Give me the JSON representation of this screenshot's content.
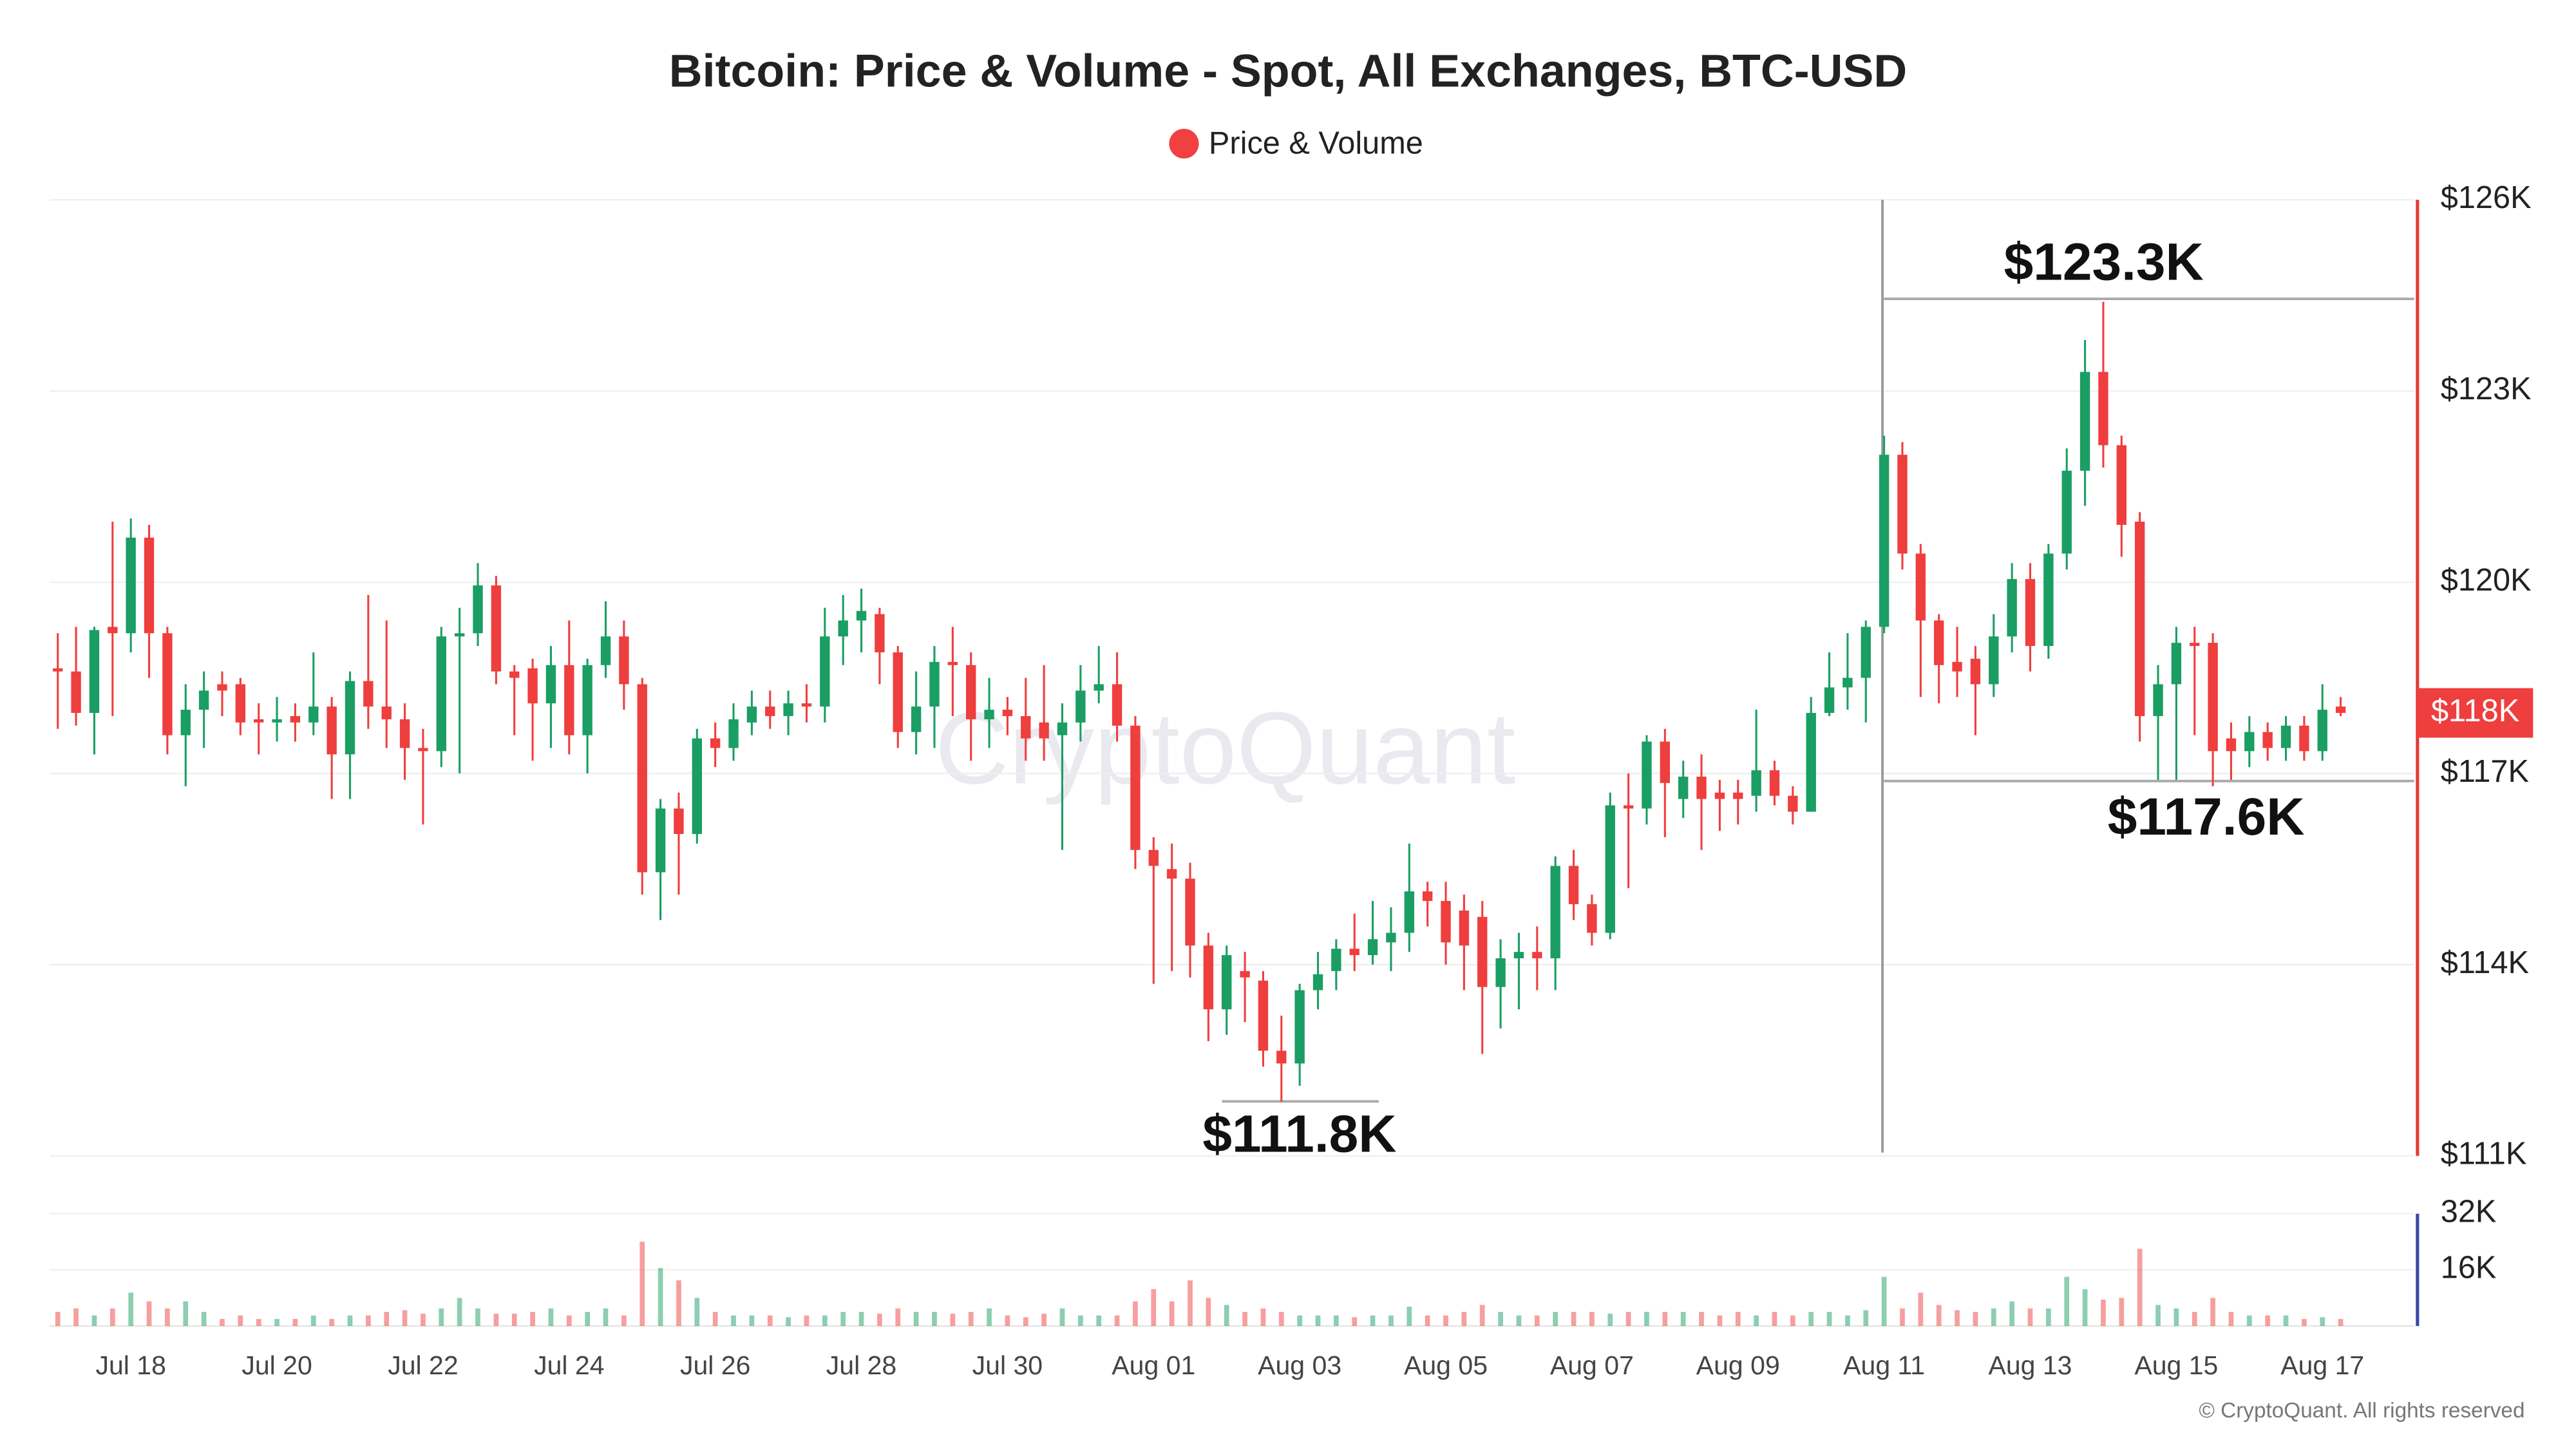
{
  "chart_data": {
    "type": "candlestick",
    "title": "Bitcoin: Price & Volume - Spot, All Exchanges, BTC-USD",
    "legend": {
      "label": "Price & Volume",
      "color": "#f23f3f"
    },
    "up_color": "#1a9e63",
    "down_color": "#ef3e3e",
    "grid": true,
    "watermark": "CryptoQuant",
    "credit": "© CryptoQuant. All rights reserved",
    "last_price_label": "$118K",
    "annotations": [
      "$123.3K",
      "$117.6K",
      "$111.8K"
    ],
    "categories": [
      null,
      null,
      null,
      null,
      "Jul 18",
      null,
      null,
      null,
      null,
      null,
      null,
      null,
      "Jul 20",
      null,
      null,
      null,
      null,
      null,
      null,
      null,
      "Jul 22",
      null,
      null,
      null,
      null,
      null,
      null,
      null,
      "Jul 24",
      null,
      null,
      null,
      null,
      null,
      null,
      null,
      "Jul 26",
      null,
      null,
      null,
      null,
      null,
      null,
      null,
      "Jul 28",
      null,
      null,
      null,
      null,
      null,
      null,
      null,
      "Jul 30",
      null,
      null,
      null,
      null,
      null,
      null,
      null,
      "Aug 01",
      null,
      null,
      null,
      null,
      null,
      null,
      null,
      "Aug 03",
      null,
      null,
      null,
      null,
      null,
      null,
      null,
      "Aug 05",
      null,
      null,
      null,
      null,
      null,
      null,
      null,
      "Aug 07",
      null,
      null,
      null,
      null,
      null,
      null,
      null,
      "Aug 09",
      null,
      null,
      null,
      null,
      null,
      null,
      null,
      "Aug 11",
      null,
      null,
      null,
      null,
      null,
      null,
      null,
      "Aug 13",
      null,
      null,
      null,
      null,
      null,
      null,
      null,
      "Aug 15",
      null,
      null,
      null,
      null,
      null,
      null,
      null,
      "Aug 17",
      null
    ],
    "open": [
      118.65,
      118.6,
      117.95,
      119.3,
      119.2,
      120.7,
      119.2,
      117.6,
      118.0,
      118.4,
      118.4,
      117.85,
      117.8,
      117.9,
      117.8,
      118.05,
      117.3,
      118.45,
      118.05,
      117.85,
      117.4,
      117.35,
      119.15,
      119.2,
      119.95,
      118.6,
      118.65,
      118.1,
      118.7,
      117.6,
      118.7,
      119.15,
      118.4,
      115.45,
      116.45,
      116.05,
      117.55,
      117.4,
      117.8,
      118.05,
      117.9,
      118.1,
      118.05,
      119.15,
      119.4,
      119.5,
      118.9,
      117.65,
      118.05,
      118.75,
      118.7,
      117.85,
      118.0,
      117.9,
      117.8,
      117.6,
      117.8,
      118.3,
      118.4,
      117.75,
      115.8,
      115.5,
      115.35,
      114.3,
      113.3,
      113.9,
      113.75,
      112.65,
      112.45,
      113.6,
      113.9,
      114.25,
      114.15,
      114.35,
      114.5,
      115.15,
      115.0,
      114.85,
      114.75,
      113.65,
      114.1,
      114.2,
      114.1,
      115.55,
      114.95,
      114.5,
      116.5,
      116.45,
      117.5,
      116.6,
      116.95,
      116.7,
      116.7,
      116.65,
      117.05,
      116.65,
      116.4,
      117.95,
      118.35,
      118.5,
      119.3,
      122.0,
      120.45,
      119.4,
      118.75,
      118.8,
      118.4,
      119.15,
      120.05,
      119.0,
      120.45,
      121.75,
      123.3,
      122.15,
      120.95,
      117.9,
      118.4,
      119.05,
      119.05,
      117.55,
      117.35,
      117.65,
      117.4,
      117.75,
      117.35,
      118.05
    ],
    "high": [
      119.2,
      119.3,
      119.3,
      120.95,
      121.0,
      120.9,
      119.3,
      118.4,
      118.6,
      118.6,
      118.5,
      118.1,
      118.2,
      118.1,
      118.9,
      118.2,
      118.6,
      119.8,
      119.4,
      118.1,
      117.7,
      119.3,
      119.6,
      120.3,
      120.1,
      118.7,
      118.8,
      119.0,
      119.4,
      118.8,
      119.7,
      119.4,
      118.5,
      116.6,
      116.7,
      117.7,
      117.8,
      118.1,
      118.3,
      118.3,
      118.3,
      118.4,
      119.6,
      119.8,
      119.9,
      119.6,
      119.0,
      118.6,
      119.0,
      119.3,
      118.9,
      118.5,
      118.2,
      118.5,
      118.7,
      118.1,
      118.7,
      119.0,
      118.9,
      117.9,
      116.0,
      115.9,
      115.6,
      114.5,
      114.3,
      114.2,
      113.9,
      113.2,
      113.7,
      114.2,
      114.4,
      114.8,
      115.0,
      114.9,
      115.9,
      115.3,
      115.3,
      115.1,
      115.0,
      114.4,
      114.5,
      114.6,
      115.7,
      115.8,
      115.1,
      116.7,
      117.0,
      117.6,
      117.7,
      117.2,
      117.3,
      116.9,
      116.9,
      118.0,
      117.2,
      116.8,
      118.2,
      118.9,
      119.2,
      119.4,
      122.3,
      122.2,
      120.6,
      119.5,
      119.3,
      119.0,
      119.5,
      120.3,
      120.3,
      120.6,
      122.1,
      123.8,
      124.4,
      122.3,
      121.1,
      118.7,
      119.3,
      119.3,
      119.2,
      117.8,
      117.9,
      117.8,
      117.9,
      117.9,
      118.4,
      118.2
    ],
    "low": [
      117.7,
      117.75,
      117.3,
      117.9,
      118.9,
      118.5,
      117.3,
      116.8,
      117.4,
      117.9,
      117.6,
      117.3,
      117.5,
      117.5,
      117.6,
      116.6,
      116.6,
      117.7,
      117.4,
      116.9,
      116.2,
      117.1,
      117.0,
      119.0,
      118.4,
      117.6,
      117.2,
      117.4,
      117.3,
      117.0,
      118.5,
      118.0,
      115.1,
      114.7,
      115.1,
      115.9,
      117.1,
      117.2,
      117.6,
      117.7,
      117.6,
      117.8,
      117.8,
      118.7,
      118.9,
      118.4,
      117.4,
      117.3,
      117.4,
      117.9,
      117.2,
      117.4,
      117.6,
      117.2,
      117.2,
      115.8,
      117.5,
      118.1,
      117.5,
      115.5,
      113.7,
      113.9,
      113.8,
      112.8,
      112.9,
      113.1,
      112.4,
      111.85,
      112.1,
      113.3,
      113.6,
      113.9,
      114.0,
      113.9,
      114.2,
      114.6,
      114.0,
      113.6,
      112.6,
      113.0,
      113.3,
      113.6,
      113.6,
      114.7,
      114.3,
      114.4,
      115.2,
      116.2,
      116.0,
      116.3,
      115.8,
      116.1,
      116.2,
      116.4,
      116.5,
      116.2,
      116.4,
      117.9,
      118.0,
      117.8,
      119.2,
      120.2,
      118.2,
      118.1,
      118.2,
      117.6,
      118.2,
      118.9,
      118.6,
      118.8,
      120.2,
      121.2,
      121.8,
      120.4,
      117.5,
      116.9,
      116.9,
      117.6,
      116.8,
      116.9,
      117.1,
      117.2,
      117.2,
      117.2,
      117.2,
      117.9
    ],
    "close": [
      118.6,
      117.95,
      119.25,
      119.2,
      120.7,
      119.2,
      117.6,
      118.0,
      118.3,
      118.3,
      117.8,
      117.8,
      117.85,
      117.8,
      118.05,
      117.3,
      118.45,
      118.05,
      117.85,
      117.4,
      117.35,
      119.15,
      119.2,
      119.95,
      118.6,
      118.5,
      118.1,
      118.7,
      117.6,
      118.7,
      119.15,
      118.4,
      115.45,
      116.45,
      116.05,
      117.55,
      117.4,
      117.85,
      118.05,
      117.9,
      118.1,
      118.05,
      119.15,
      119.4,
      119.55,
      118.9,
      117.65,
      118.05,
      118.75,
      118.7,
      117.85,
      118.0,
      117.9,
      117.55,
      117.55,
      117.8,
      118.3,
      118.4,
      117.75,
      115.8,
      115.55,
      115.35,
      114.3,
      113.3,
      114.15,
      113.8,
      112.65,
      112.45,
      113.6,
      113.85,
      114.25,
      114.15,
      114.4,
      114.5,
      115.15,
      115.0,
      114.35,
      114.3,
      113.65,
      114.1,
      114.2,
      114.1,
      115.55,
      114.95,
      114.5,
      116.5,
      116.45,
      117.5,
      116.85,
      116.95,
      116.6,
      116.6,
      116.6,
      117.05,
      116.65,
      116.4,
      117.95,
      118.35,
      118.5,
      119.3,
      122.0,
      120.45,
      119.4,
      118.7,
      118.6,
      118.4,
      119.15,
      120.05,
      119.0,
      120.45,
      121.75,
      123.3,
      122.15,
      120.9,
      117.9,
      118.4,
      119.05,
      119.0,
      117.35,
      117.35,
      117.65,
      117.4,
      117.75,
      117.35,
      118.0,
      117.95
    ],
    "volume": [
      4,
      5,
      3,
      5,
      9.5,
      7,
      5,
      7,
      4,
      2,
      3,
      2,
      2,
      2,
      3,
      2,
      3,
      3,
      4,
      4.5,
      3.5,
      5,
      8,
      5,
      3.5,
      3.5,
      4,
      5,
      3,
      4,
      5,
      3,
      24,
      16.5,
      13,
      8,
      4,
      3,
      3,
      3,
      2.5,
      3,
      3,
      4,
      4,
      3.5,
      5,
      4,
      4,
      3.5,
      4,
      5,
      3,
      2.5,
      3.5,
      5,
      3,
      3,
      3,
      7,
      10.5,
      7,
      13,
      8,
      6,
      4,
      5,
      4,
      3,
      3,
      3,
      2.5,
      3,
      3,
      5.5,
      3,
      3,
      4,
      6,
      4,
      3,
      3,
      4,
      4,
      4,
      3.5,
      4,
      4,
      4,
      4,
      4,
      3,
      4,
      3,
      4,
      3,
      4,
      4,
      3,
      4.5,
      14,
      5,
      9.5,
      6,
      4.5,
      4,
      5,
      7,
      5,
      5,
      14,
      10.5,
      7.5,
      8,
      22,
      6,
      5,
      4,
      8,
      4,
      3,
      3,
      3,
      2,
      2.5,
      2
    ],
    "ylim": [
      111,
      126
    ],
    "yticks": [
      {
        "value": 111,
        "label": "$111K"
      },
      {
        "value": 114,
        "label": "$114K"
      },
      {
        "value": 117,
        "label": "$117K"
      },
      {
        "value": 120,
        "label": "$120K"
      },
      {
        "value": 123,
        "label": "$123K"
      },
      {
        "value": 126,
        "label": "$126K"
      }
    ],
    "volume_ylim": [
      0,
      32
    ],
    "volume_yticks": [
      {
        "value": 16,
        "label": "16K"
      },
      {
        "value": 32,
        "label": "32K"
      }
    ]
  }
}
